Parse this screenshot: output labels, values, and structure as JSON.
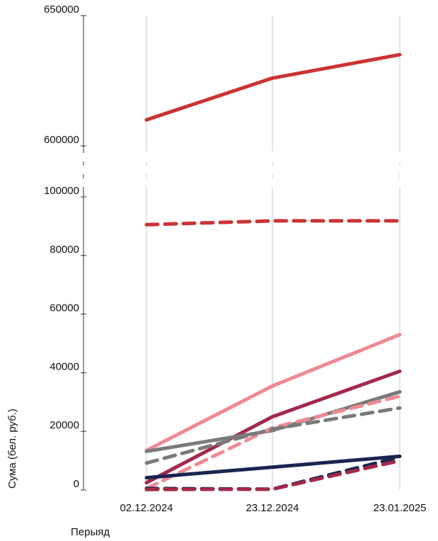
{
  "chart_data": {
    "type": "line",
    "xlabel": "Перыяд",
    "ylabel": "Сума (бел. руб.)",
    "x": [
      "02.12.2024",
      "23.12.2024",
      "23.01.2025"
    ],
    "y_axis_break": {
      "lower_range": [
        0,
        105000
      ],
      "upper_range": [
        600000,
        650000
      ]
    },
    "y_ticks_lower": [
      "0",
      "20000",
      "40000",
      "60000",
      "80000",
      "100000"
    ],
    "y_ticks_upper": [
      "600000",
      "650000"
    ],
    "grid": "vertical",
    "series": [
      {
        "color": "#cc3333",
        "dash": false,
        "values": [
          610000,
          626000,
          635000
        ]
      },
      {
        "color": "#cc3333",
        "dash": true,
        "values": [
          90500,
          91800,
          91800
        ]
      },
      {
        "color": "#ef8a92",
        "dash": false,
        "values": [
          13500,
          35500,
          53000
        ]
      },
      {
        "color": "#a3294a",
        "dash": false,
        "values": [
          2500,
          25000,
          40500
        ]
      },
      {
        "color": "#7a7a7a",
        "dash": false,
        "values": [
          13200,
          20300,
          33500
        ]
      },
      {
        "color": "#ef8a92",
        "dash": true,
        "values": [
          500,
          21200,
          32000
        ]
      },
      {
        "color": "#7a7a7a",
        "dash": true,
        "values": [
          9200,
          20800,
          28000
        ]
      },
      {
        "color": "#1a2550",
        "dash": false,
        "values": [
          4200,
          7800,
          11500
        ]
      },
      {
        "color": "#1a2550",
        "dash": true,
        "values": [
          500,
          300,
          11200
        ]
      },
      {
        "color": "#a3294a",
        "dash": true,
        "values": [
          200,
          300,
          10000
        ]
      }
    ]
  }
}
